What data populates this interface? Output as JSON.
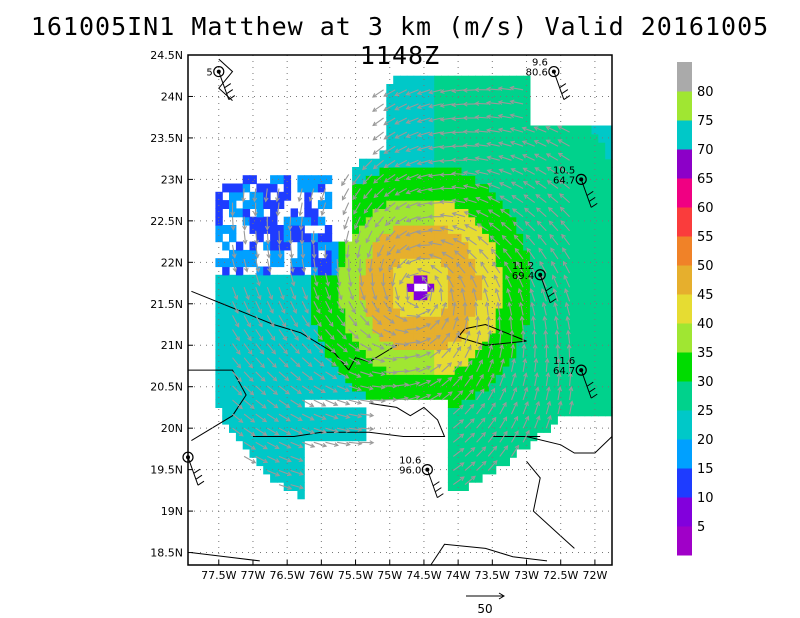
{
  "chart_data": {
    "type": "heatmap",
    "title": "161005IN1 Matthew at 3 km (m/s) Valid 20161005 1148Z",
    "x_ticks": [
      "77.5W",
      "77W",
      "76.5W",
      "76W",
      "75.5W",
      "75W",
      "74.5W",
      "74W",
      "73.5W",
      "73W",
      "72.5W",
      "72W"
    ],
    "x_tick_values": [
      -77.5,
      -77,
      -76.5,
      -76,
      -75.5,
      -75,
      -74.5,
      -74,
      -73.5,
      -73,
      -72.5,
      -72
    ],
    "y_ticks": [
      "18.5N",
      "19N",
      "19.5N",
      "20N",
      "20.5N",
      "21N",
      "21.5N",
      "22N",
      "22.5N",
      "23N",
      "23.5N",
      "24N",
      "24.5N"
    ],
    "y_tick_values": [
      18.5,
      19,
      19.5,
      20,
      20.5,
      21,
      21.5,
      22,
      22.5,
      23,
      23.5,
      24,
      24.5
    ],
    "xlim": [
      -77.95,
      -71.75
    ],
    "ylim": [
      18.35,
      24.5
    ],
    "grid": true,
    "storm_center": {
      "lon": -74.6,
      "lat": 21.65
    },
    "colorbar": {
      "labels": [
        "5",
        "10",
        "15",
        "20",
        "25",
        "30",
        "35",
        "40",
        "45",
        "50",
        "55",
        "60",
        "65",
        "70",
        "75",
        "80"
      ],
      "colors": [
        "#a000c8",
        "#8200dc",
        "#1e3cff",
        "#00a0ff",
        "#00c8c8",
        "#00d28c",
        "#00dc00",
        "#a0e632",
        "#e6dc32",
        "#e6af2d",
        "#f08228",
        "#fa3c3c",
        "#f00082",
        "#8c00c8",
        "#00c8c8",
        "#a0e632",
        "#aaaaaa"
      ]
    },
    "stations": [
      {
        "lon": -77.5,
        "lat": 24.3,
        "speed": "",
        "value": "5"
      },
      {
        "lon": -72.6,
        "lat": 24.3,
        "speed": "9.6",
        "value": "80.6"
      },
      {
        "lon": -72.2,
        "lat": 23.0,
        "speed": "10.5",
        "value": "64.7"
      },
      {
        "lon": -72.8,
        "lat": 21.85,
        "speed": "11.2",
        "value": "69.4"
      },
      {
        "lon": -72.2,
        "lat": 20.7,
        "speed": "11.6",
        "value": "64.7"
      },
      {
        "lon": -74.45,
        "lat": 19.5,
        "speed": "10.6",
        "value": "96.0"
      },
      {
        "lon": -77.95,
        "lat": 19.65,
        "speed": "",
        "value": ""
      }
    ],
    "reference_vector_label": "50"
  }
}
